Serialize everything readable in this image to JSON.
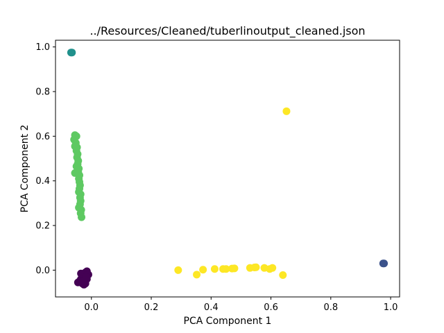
{
  "chart_data": {
    "type": "scatter",
    "title": "../Resources/Cleaned/tuberlinoutput_cleaned.json",
    "xlabel": "PCA Component 1",
    "ylabel": "PCA Component 2",
    "xlim": [
      -0.12,
      1.03
    ],
    "ylim": [
      -0.12,
      1.03
    ],
    "xticks": [
      0.0,
      0.2,
      0.4,
      0.6,
      0.8,
      1.0
    ],
    "xtick_labels": [
      "0.0",
      "0.2",
      "0.4",
      "0.6",
      "0.8",
      "1.0"
    ],
    "yticks": [
      0.0,
      0.2,
      0.4,
      0.6,
      0.8,
      1.0
    ],
    "ytick_labels": [
      "0.0",
      "0.2",
      "0.4",
      "0.6",
      "0.8",
      "1.0"
    ],
    "grid": false,
    "series": [
      {
        "color": "#440154",
        "points": [
          [
            -0.02,
            -0.01
          ],
          [
            -0.025,
            -0.02
          ],
          [
            -0.015,
            -0.005
          ],
          [
            -0.03,
            -0.03
          ],
          [
            -0.035,
            -0.04
          ],
          [
            -0.04,
            -0.05
          ],
          [
            -0.045,
            -0.055
          ],
          [
            -0.02,
            -0.06
          ],
          [
            -0.025,
            -0.065
          ],
          [
            -0.03,
            -0.06
          ],
          [
            -0.015,
            -0.04
          ],
          [
            -0.02,
            -0.035
          ],
          [
            -0.035,
            -0.015
          ],
          [
            -0.01,
            -0.02
          ],
          [
            -0.028,
            -0.05
          ],
          [
            -0.018,
            -0.03
          ]
        ]
      },
      {
        "color": "#3b528b",
        "points": [
          [
            0.975,
            0.03
          ],
          [
            0.978,
            0.03
          ]
        ]
      },
      {
        "color": "#21918c",
        "points": [
          [
            -0.068,
            0.975
          ],
          [
            -0.065,
            0.975
          ]
        ]
      },
      {
        "color": "#5ec962",
        "points": [
          [
            -0.055,
            0.605
          ],
          [
            -0.05,
            0.6
          ],
          [
            -0.058,
            0.585
          ],
          [
            -0.052,
            0.57
          ],
          [
            -0.055,
            0.555
          ],
          [
            -0.048,
            0.55
          ],
          [
            -0.05,
            0.535
          ],
          [
            -0.046,
            0.52
          ],
          [
            -0.048,
            0.505
          ],
          [
            -0.044,
            0.49
          ],
          [
            -0.046,
            0.475
          ],
          [
            -0.05,
            0.465
          ],
          [
            -0.042,
            0.455
          ],
          [
            -0.044,
            0.44
          ],
          [
            -0.055,
            0.435
          ],
          [
            -0.04,
            0.425
          ],
          [
            -0.042,
            0.41
          ],
          [
            -0.04,
            0.395
          ],
          [
            -0.038,
            0.38
          ],
          [
            -0.04,
            0.365
          ],
          [
            -0.042,
            0.35
          ],
          [
            -0.036,
            0.34
          ],
          [
            -0.038,
            0.325
          ],
          [
            -0.036,
            0.31
          ],
          [
            -0.038,
            0.295
          ],
          [
            -0.042,
            0.28
          ],
          [
            -0.034,
            0.27
          ],
          [
            -0.036,
            0.255
          ],
          [
            -0.033,
            0.237
          ]
        ]
      },
      {
        "color": "#fde725",
        "points": [
          [
            0.29,
            -0.0
          ],
          [
            0.352,
            -0.02
          ],
          [
            0.373,
            0.002
          ],
          [
            0.412,
            0.005
          ],
          [
            0.44,
            0.005
          ],
          [
            0.45,
            0.005
          ],
          [
            0.47,
            0.007
          ],
          [
            0.478,
            0.008
          ],
          [
            0.53,
            0.01
          ],
          [
            0.545,
            0.012
          ],
          [
            0.55,
            0.013
          ],
          [
            0.578,
            0.01
          ],
          [
            0.596,
            0.005
          ],
          [
            0.605,
            0.01
          ],
          [
            0.64,
            -0.022
          ],
          [
            0.652,
            0.712
          ]
        ]
      }
    ]
  }
}
